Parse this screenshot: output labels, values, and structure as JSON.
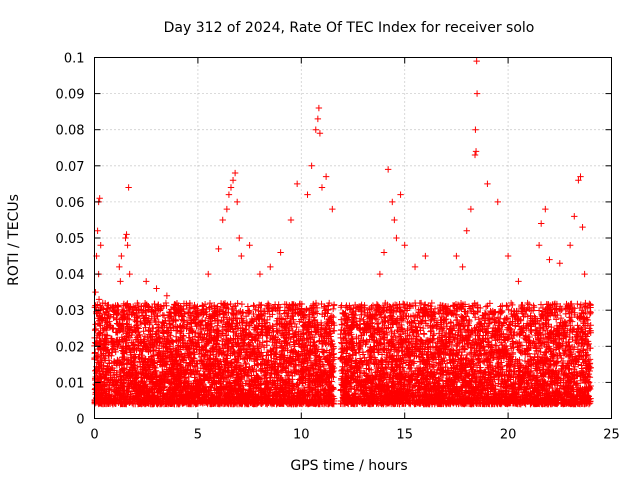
{
  "chart_data": {
    "type": "scatter",
    "title": "Day 312 of 2024, Rate Of TEC Index for receiver solo",
    "xlabel": "GPS time / hours",
    "ylabel": "ROTI / TECUs",
    "xlim": [
      0,
      25
    ],
    "ylim": [
      0,
      0.1
    ],
    "x_ticks": [
      0,
      5,
      10,
      15,
      20,
      25
    ],
    "x_tick_labels": [
      "0",
      "5",
      "10",
      "15",
      "20",
      "25"
    ],
    "y_ticks": [
      0,
      0.01,
      0.02,
      0.03,
      0.04,
      0.05,
      0.06,
      0.07,
      0.08,
      0.09,
      0.1
    ],
    "y_tick_labels": [
      "0",
      "0.01",
      "0.02",
      "0.03",
      "0.04",
      "0.05",
      "0.06",
      "0.07",
      "0.08",
      "0.09",
      "0.1"
    ],
    "grid": true,
    "marker": "+",
    "color": "#ff0000",
    "series": [
      {
        "name": "ROTI",
        "x": [
          0.05,
          0.1,
          0.15,
          0.2,
          0.25,
          0.3,
          0.2,
          0.22,
          0.18,
          0.35,
          0.4,
          1.2,
          1.25,
          1.3,
          1.5,
          1.55,
          1.6,
          1.65,
          1.7,
          2.5,
          3.0,
          3.5,
          4.0,
          5.5,
          6.0,
          6.2,
          6.4,
          6.5,
          6.6,
          6.7,
          6.8,
          6.9,
          7.0,
          7.1,
          7.5,
          8.0,
          8.5,
          9.0,
          9.5,
          9.8,
          10.3,
          10.5,
          10.7,
          10.8,
          10.85,
          10.9,
          11.0,
          11.2,
          11.5,
          13.8,
          14.0,
          14.2,
          14.4,
          14.5,
          14.6,
          14.8,
          15.0,
          15.5,
          16.0,
          17.5,
          17.8,
          18.0,
          18.2,
          18.4,
          18.45,
          18.5,
          18.42,
          18.48,
          19.0,
          19.5,
          20.0,
          20.5,
          21.5,
          21.6,
          21.8,
          22.0,
          22.5,
          23.0,
          23.2,
          23.4,
          23.5,
          23.6,
          23.7
        ],
        "y": [
          0.035,
          0.045,
          0.052,
          0.06,
          0.061,
          0.048,
          0.04,
          0.033,
          0.03,
          0.028,
          0.025,
          0.042,
          0.038,
          0.045,
          0.05,
          0.051,
          0.048,
          0.064,
          0.04,
          0.038,
          0.036,
          0.034,
          0.03,
          0.04,
          0.047,
          0.055,
          0.058,
          0.062,
          0.064,
          0.066,
          0.068,
          0.06,
          0.05,
          0.045,
          0.048,
          0.04,
          0.042,
          0.046,
          0.055,
          0.065,
          0.062,
          0.07,
          0.08,
          0.083,
          0.086,
          0.079,
          0.064,
          0.067,
          0.058,
          0.04,
          0.046,
          0.069,
          0.06,
          0.055,
          0.05,
          0.062,
          0.048,
          0.042,
          0.045,
          0.045,
          0.042,
          0.052,
          0.058,
          0.073,
          0.074,
          0.09,
          0.08,
          0.099,
          0.065,
          0.06,
          0.045,
          0.038,
          0.048,
          0.054,
          0.058,
          0.044,
          0.043,
          0.048,
          0.056,
          0.066,
          0.067,
          0.053,
          0.04
        ]
      }
    ],
    "dense_band": {
      "description_ranges": [
        {
          "x_from": 0.0,
          "x_to": 11.6,
          "y_min": 0.004,
          "y_max": 0.032
        },
        {
          "x_from": 11.9,
          "x_to": 24.0,
          "y_min": 0.004,
          "y_max": 0.032
        }
      ],
      "point_count": 9000
    }
  }
}
